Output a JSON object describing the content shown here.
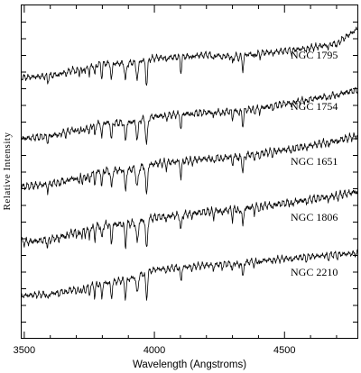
{
  "chart_data": {
    "type": "line",
    "xlabel": "Wavelength (Angstroms)",
    "ylabel": "Relative Intensity",
    "xlim": [
      3490,
      4780
    ],
    "xticks": [
      3500,
      4000,
      4500
    ],
    "yticks_labeled": false,
    "grid": false,
    "series": [
      {
        "name": "NGC 1795",
        "x": [
          3500,
          3600,
          3700,
          3800,
          3900,
          3970,
          4000,
          4100,
          4200,
          4300,
          4400,
          4500,
          4600,
          4700,
          4780
        ],
        "values": [
          0.1,
          0.13,
          0.25,
          0.36,
          0.36,
          0.08,
          0.46,
          0.48,
          0.52,
          0.49,
          0.55,
          0.59,
          0.65,
          0.73,
          1.0
        ]
      },
      {
        "name": "NGC 1754",
        "x": [
          3500,
          3600,
          3700,
          3800,
          3900,
          3970,
          4000,
          4100,
          4200,
          4300,
          4400,
          4500,
          4600,
          4700,
          4780
        ],
        "values": [
          0.1,
          0.14,
          0.26,
          0.37,
          0.37,
          0.05,
          0.48,
          0.52,
          0.55,
          0.57,
          0.62,
          0.7,
          0.78,
          0.86,
          0.94
        ]
      },
      {
        "name": "NGC 1651",
        "x": [
          3500,
          3600,
          3700,
          3800,
          3900,
          3970,
          4000,
          4100,
          4200,
          4300,
          4400,
          4500,
          4600,
          4700,
          4780
        ],
        "values": [
          0.1,
          0.14,
          0.24,
          0.35,
          0.36,
          0.04,
          0.46,
          0.5,
          0.54,
          0.57,
          0.62,
          0.68,
          0.75,
          0.83,
          0.9
        ]
      },
      {
        "name": "NGC 1806",
        "x": [
          3500,
          3600,
          3700,
          3800,
          3900,
          3970,
          4000,
          4100,
          4200,
          4300,
          4400,
          4500,
          4600,
          4700,
          4780
        ],
        "values": [
          0.1,
          0.14,
          0.26,
          0.37,
          0.38,
          0.04,
          0.48,
          0.52,
          0.57,
          0.6,
          0.65,
          0.7,
          0.76,
          0.82,
          0.88
        ]
      },
      {
        "name": "NGC 2210",
        "x": [
          3500,
          3600,
          3700,
          3800,
          3900,
          3970,
          4000,
          4100,
          4200,
          4300,
          4400,
          4500,
          4600,
          4700,
          4780
        ],
        "values": [
          0.1,
          0.13,
          0.22,
          0.32,
          0.4,
          0.02,
          0.58,
          0.62,
          0.66,
          0.69,
          0.74,
          0.78,
          0.82,
          0.86,
          0.88
        ]
      }
    ]
  }
}
